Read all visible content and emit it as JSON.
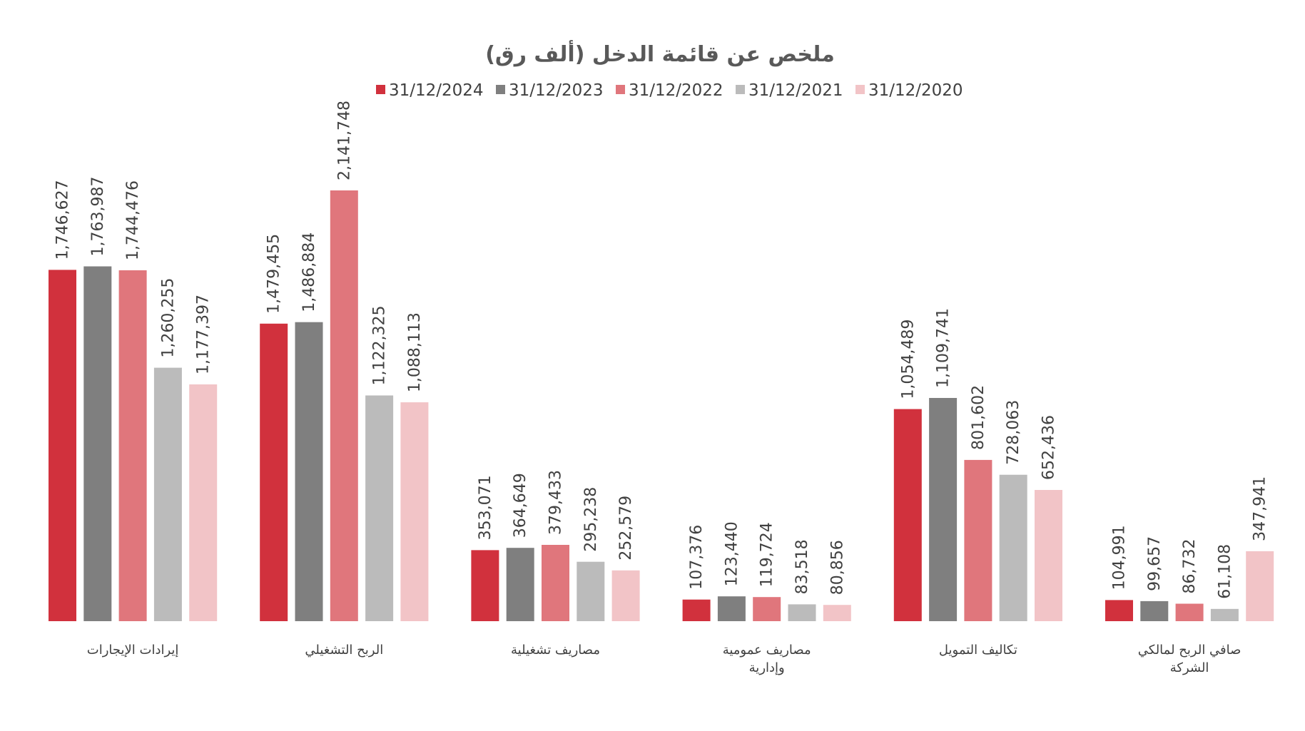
{
  "chart_data": {
    "type": "bar",
    "title": "ملخص عن قائمة الدخل (ألف رق)",
    "xlabel": "",
    "ylabel": "",
    "ylim": [
      0,
      2141748
    ],
    "grid": false,
    "legend_position": "top",
    "categories": [
      "إيرادات الإيجارات",
      "الربح التشغيلي",
      "مصاريف تشغيلية",
      "مصاريف عمومية وإدارية",
      "تكاليف التمويل",
      "صافي الربح لمالكي الشركة"
    ],
    "category_lines": [
      [
        "إيرادات الإيجارات"
      ],
      [
        "الربح التشغيلي"
      ],
      [
        "مصاريف تشغيلية"
      ],
      [
        "مصاريف عمومية",
        "وإدارية"
      ],
      [
        "تكاليف التمويل"
      ],
      [
        "صافي الربح لمالكي",
        "الشركة"
      ]
    ],
    "series": [
      {
        "name": "31/12/2024",
        "color": "#d1313d",
        "values": [
          1746627,
          1479455,
          353071,
          107376,
          1054489,
          104991
        ],
        "labels": [
          "1,746,627",
          "1,479,455",
          "353,071",
          "107,376",
          "1,054,489",
          "104,991"
        ]
      },
      {
        "name": "31/12/2023",
        "color": "#7f7f7f",
        "values": [
          1763987,
          1486884,
          364649,
          123440,
          1109741,
          99657
        ],
        "labels": [
          "1,763,987",
          "1,486,884",
          "364,649",
          "123,440",
          "1,109,741",
          "99,657"
        ]
      },
      {
        "name": "31/12/2022",
        "color": "#e0767c",
        "values": [
          1744476,
          2141748,
          379433,
          119724,
          801602,
          86732
        ],
        "labels": [
          "1,744,476",
          "2,141,748",
          "379,433",
          "119,724",
          "801,602",
          "86,732"
        ]
      },
      {
        "name": "31/12/2021",
        "color": "#bbbbbb",
        "values": [
          1260255,
          1122325,
          295238,
          83518,
          728063,
          61108
        ],
        "labels": [
          "1,260,255",
          "1,122,325",
          "295,238",
          "83,518",
          "728,063",
          "61,108"
        ]
      },
      {
        "name": "31/12/2020",
        "color": "#f2c4c7",
        "values": [
          1177397,
          1088113,
          252579,
          80856,
          652436,
          347941
        ],
        "labels": [
          "1,177,397",
          "1,088,113",
          "252,579",
          "80,856",
          "652,436",
          "347,941"
        ]
      }
    ]
  }
}
